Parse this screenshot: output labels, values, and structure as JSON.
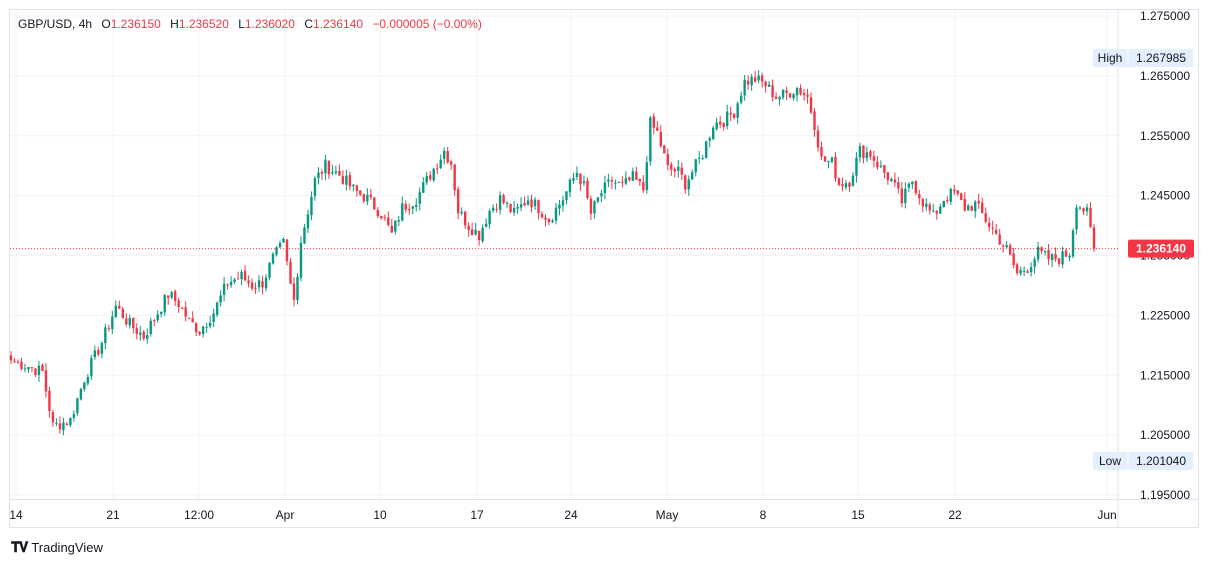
{
  "legend": {
    "symbol": "GBP/USD",
    "interval": "4h",
    "open_label": "O",
    "open": "1.236150",
    "high_label": "H",
    "high": "1.236520",
    "low_label": "L",
    "low": "1.236020",
    "close_label": "C",
    "close": "1.236140",
    "change": "−0.000005 (−0.00%)"
  },
  "footer": {
    "brand": "TradingView"
  },
  "colors": {
    "up": "#089981",
    "down": "#f23645",
    "grid": "#f0f3fa",
    "text": "#131722",
    "tag_bg": "#e3effd"
  },
  "chart_data": {
    "type": "candlestick",
    "ylim": [
      1.193,
      1.277
    ],
    "y_ticks": [
      "1.275000",
      "1.265000",
      "1.255000",
      "1.245000",
      "1.235000",
      "1.225000",
      "1.215000",
      "1.205000",
      "1.195000"
    ],
    "x_ticks": [
      "14",
      "21",
      "12:00",
      "Apr",
      "10",
      "17",
      "24",
      "May",
      "8",
      "15",
      "22",
      "Jun"
    ],
    "high_label": "High",
    "high_value": "1.267985",
    "low_label": "Low",
    "low_value": "1.201040",
    "last_price": "1.236140",
    "anchors": [
      {
        "i": 0,
        "p": 1.2175
      },
      {
        "i": 5,
        "p": 1.2165
      },
      {
        "i": 9,
        "p": 1.2155
      },
      {
        "i": 12,
        "p": 1.2065
      },
      {
        "i": 17,
        "p": 1.2075
      },
      {
        "i": 21,
        "p": 1.2145
      },
      {
        "i": 26,
        "p": 1.2205
      },
      {
        "i": 30,
        "p": 1.2265
      },
      {
        "i": 34,
        "p": 1.2235
      },
      {
        "i": 38,
        "p": 1.2215
      },
      {
        "i": 41,
        "p": 1.2245
      },
      {
        "i": 45,
        "p": 1.2285
      },
      {
        "i": 48,
        "p": 1.227
      },
      {
        "i": 51,
        "p": 1.224
      },
      {
        "i": 54,
        "p": 1.2225
      },
      {
        "i": 58,
        "p": 1.2255
      },
      {
        "i": 62,
        "p": 1.2305
      },
      {
        "i": 66,
        "p": 1.2315
      },
      {
        "i": 69,
        "p": 1.23
      },
      {
        "i": 72,
        "p": 1.2305
      },
      {
        "i": 75,
        "p": 1.2345
      },
      {
        "i": 78,
        "p": 1.237
      },
      {
        "i": 80,
        "p": 1.23
      },
      {
        "i": 81,
        "p": 1.2275
      },
      {
        "i": 83,
        "p": 1.2375
      },
      {
        "i": 87,
        "p": 1.2475
      },
      {
        "i": 90,
        "p": 1.25
      },
      {
        "i": 94,
        "p": 1.2485
      },
      {
        "i": 98,
        "p": 1.246
      },
      {
        "i": 102,
        "p": 1.2445
      },
      {
        "i": 106,
        "p": 1.242
      },
      {
        "i": 109,
        "p": 1.2385
      },
      {
        "i": 112,
        "p": 1.243
      },
      {
        "i": 116,
        "p": 1.2445
      },
      {
        "i": 120,
        "p": 1.2485
      },
      {
        "i": 124,
        "p": 1.2525
      },
      {
        "i": 126,
        "p": 1.2505
      },
      {
        "i": 128,
        "p": 1.2425
      },
      {
        "i": 131,
        "p": 1.24
      },
      {
        "i": 134,
        "p": 1.2385
      },
      {
        "i": 137,
        "p": 1.2425
      },
      {
        "i": 140,
        "p": 1.2445
      },
      {
        "i": 144,
        "p": 1.242
      },
      {
        "i": 148,
        "p": 1.2445
      },
      {
        "i": 151,
        "p": 1.243
      },
      {
        "i": 154,
        "p": 1.241
      },
      {
        "i": 158,
        "p": 1.2445
      },
      {
        "i": 162,
        "p": 1.249
      },
      {
        "i": 164,
        "p": 1.2465
      },
      {
        "i": 166,
        "p": 1.242
      },
      {
        "i": 169,
        "p": 1.2455
      },
      {
        "i": 172,
        "p": 1.2475
      },
      {
        "i": 175,
        "p": 1.2465
      },
      {
        "i": 178,
        "p": 1.248
      },
      {
        "i": 181,
        "p": 1.246
      },
      {
        "i": 183,
        "p": 1.257
      },
      {
        "i": 185,
        "p": 1.2555
      },
      {
        "i": 188,
        "p": 1.2495
      },
      {
        "i": 191,
        "p": 1.249
      },
      {
        "i": 193,
        "p": 1.247
      },
      {
        "i": 196,
        "p": 1.25
      },
      {
        "i": 198,
        "p": 1.252
      },
      {
        "i": 201,
        "p": 1.257
      },
      {
        "i": 204,
        "p": 1.2575
      },
      {
        "i": 207,
        "p": 1.259
      },
      {
        "i": 210,
        "p": 1.264
      },
      {
        "i": 213,
        "p": 1.2645
      },
      {
        "i": 216,
        "p": 1.2635
      },
      {
        "i": 219,
        "p": 1.2615
      },
      {
        "i": 222,
        "p": 1.262
      },
      {
        "i": 225,
        "p": 1.263
      },
      {
        "i": 228,
        "p": 1.2615
      },
      {
        "i": 230,
        "p": 1.257
      },
      {
        "i": 232,
        "p": 1.251
      },
      {
        "i": 235,
        "p": 1.2505
      },
      {
        "i": 237,
        "p": 1.247
      },
      {
        "i": 240,
        "p": 1.2475
      },
      {
        "i": 243,
        "p": 1.2525
      },
      {
        "i": 246,
        "p": 1.252
      },
      {
        "i": 249,
        "p": 1.2495
      },
      {
        "i": 252,
        "p": 1.2475
      },
      {
        "i": 255,
        "p": 1.244
      },
      {
        "i": 258,
        "p": 1.2475
      },
      {
        "i": 261,
        "p": 1.244
      },
      {
        "i": 264,
        "p": 1.2415
      },
      {
        "i": 267,
        "p": 1.2445
      },
      {
        "i": 270,
        "p": 1.2455
      },
      {
        "i": 273,
        "p": 1.243
      },
      {
        "i": 276,
        "p": 1.2435
      },
      {
        "i": 279,
        "p": 1.241
      },
      {
        "i": 282,
        "p": 1.2385
      },
      {
        "i": 285,
        "p": 1.236
      },
      {
        "i": 288,
        "p": 1.232
      },
      {
        "i": 291,
        "p": 1.233
      },
      {
        "i": 294,
        "p": 1.2355
      },
      {
        "i": 297,
        "p": 1.2345
      },
      {
        "i": 300,
        "p": 1.2345
      },
      {
        "i": 303,
        "p": 1.2355
      },
      {
        "i": 305,
        "p": 1.244
      },
      {
        "i": 308,
        "p": 1.242
      },
      {
        "i": 310,
        "p": 1.23614
      }
    ]
  }
}
